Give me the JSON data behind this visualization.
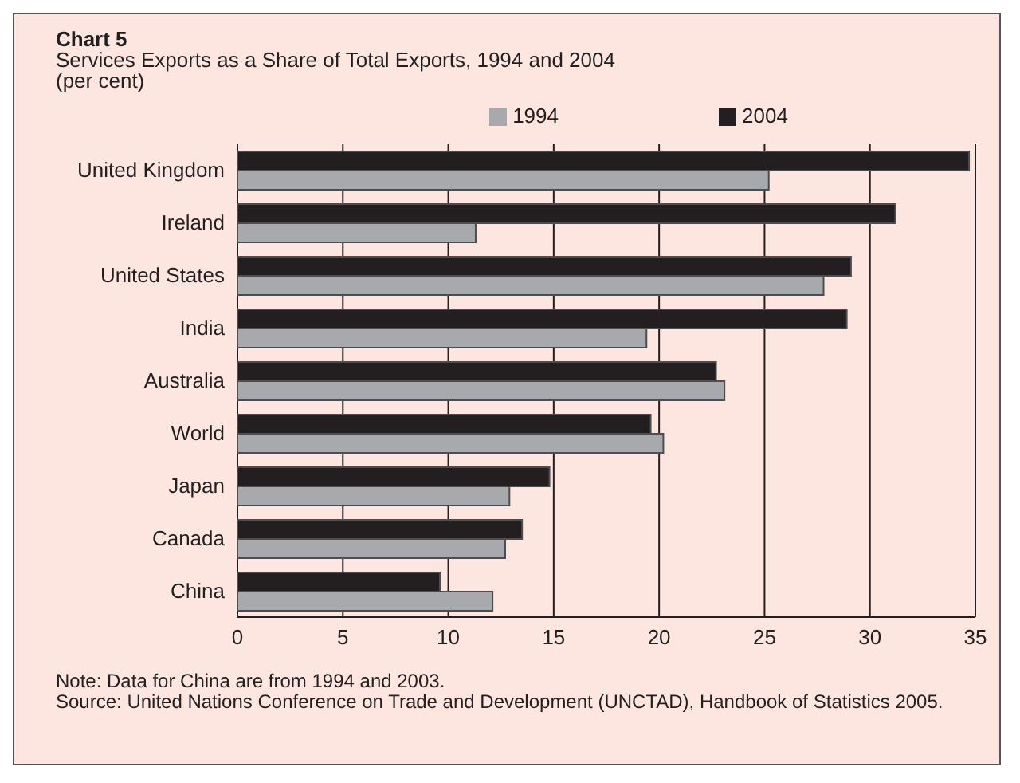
{
  "chart_data": {
    "type": "bar",
    "orientation": "horizontal",
    "title": "Chart 5",
    "subtitle": "Services Exports as a Share of Total Exports, 1994 and 2004",
    "ylabel": "(per cent)",
    "categories": [
      "United Kingdom",
      "Ireland",
      "United States",
      "India",
      "Australia",
      "World",
      "Japan",
      "Canada",
      "China"
    ],
    "series": [
      {
        "name": "2004",
        "color": "#231f20",
        "values": [
          34.7,
          31.2,
          29.1,
          28.9,
          22.7,
          19.6,
          14.8,
          13.5,
          9.6
        ]
      },
      {
        "name": "1994",
        "color": "#a7a9ac",
        "values": [
          25.2,
          11.3,
          27.8,
          19.4,
          23.1,
          20.2,
          12.9,
          12.7,
          12.1
        ]
      }
    ],
    "xlim": [
      0,
      35
    ],
    "xticks": [
      0,
      5,
      10,
      15,
      20,
      25,
      30,
      35
    ],
    "grid": "x",
    "legend": "top",
    "annotations": [
      "Note: Data for China are from 1994 and 2003.",
      "Source: United Nations Conference on Trade and Development (UNCTAD), Handbook of Statistics 2005."
    ]
  }
}
